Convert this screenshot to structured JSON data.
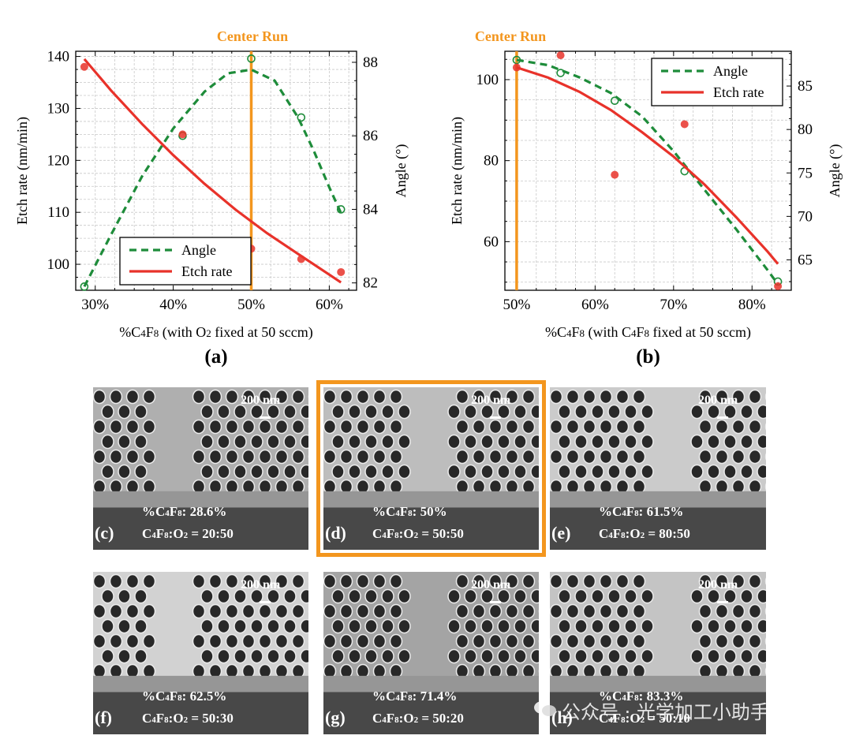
{
  "colors": {
    "angle": "#1e8c3a",
    "etch": "#e8322a",
    "center": "#f3961e",
    "grid": "#c8c8c8",
    "axis": "#000000"
  },
  "chart_data": [
    {
      "type": "line",
      "panel_label": "(a)",
      "annotation": "Center Run",
      "xlabel": "%C4F8 (with O2 fixed at 50 sccm)",
      "ylabel": "Etch rate (nm/min)",
      "y2label": "Angle (°)",
      "xlim": [
        27.5,
        63.5
      ],
      "ylim": [
        95,
        141
      ],
      "y2lim": [
        81.8,
        88.3
      ],
      "xticks": [
        30,
        40,
        50,
        60
      ],
      "xtick_labels": [
        "30%",
        "40%",
        "50%",
        "60%"
      ],
      "yticks": [
        100,
        110,
        120,
        130,
        140
      ],
      "ytick_labels": [
        "100",
        "110",
        "120",
        "130",
        "140"
      ],
      "y2ticks": [
        82,
        84,
        86,
        88
      ],
      "y2tick_labels": [
        "82",
        "84",
        "86",
        "88"
      ],
      "grid": true,
      "legend_position": "bottom-left",
      "center_x": 50,
      "series": [
        {
          "name": "Angle",
          "axis": "right",
          "style": "dashed",
          "points_x": [
            28.6,
            41.2,
            50,
            56.4,
            61.5
          ],
          "points_y": [
            81.9,
            86.0,
            88.1,
            86.5,
            84.0
          ],
          "fit_x": [
            28.6,
            32,
            36,
            40,
            44,
            47,
            50,
            53,
            56,
            58,
            60,
            61.5
          ],
          "fit_y": [
            81.9,
            83.3,
            84.9,
            86.2,
            87.2,
            87.7,
            87.8,
            87.5,
            86.5,
            85.6,
            84.6,
            83.9
          ]
        },
        {
          "name": "Etch rate",
          "axis": "left",
          "style": "solid",
          "points_x": [
            28.6,
            41.2,
            50,
            56.4,
            61.5
          ],
          "points_y": [
            138,
            125,
            103,
            101,
            98.5
          ],
          "fit_x": [
            28.6,
            32,
            36,
            40,
            44,
            48,
            52,
            56,
            60,
            61.5
          ],
          "fit_y": [
            139.5,
            133.5,
            127,
            121,
            115.5,
            110.5,
            106,
            102,
            98,
            96.5
          ]
        }
      ]
    },
    {
      "type": "line",
      "panel_label": "(b)",
      "annotation": "Center Run",
      "xlabel": "%C4F8 (with C4F8 fixed at 50 sccm)",
      "ylabel": "Etch rate (nm/min)",
      "y2label": "Angle (°)",
      "xlim": [
        48.5,
        85
      ],
      "ylim": [
        48,
        107
      ],
      "y2lim": [
        61.5,
        89
      ],
      "xticks": [
        50,
        60,
        70,
        80
      ],
      "xtick_labels": [
        "50%",
        "60%",
        "70%",
        "80%"
      ],
      "yticks": [
        60,
        80,
        100
      ],
      "ytick_labels": [
        "60",
        "80",
        "100"
      ],
      "y2ticks": [
        65,
        70,
        75,
        80,
        85
      ],
      "y2tick_labels": [
        "65",
        "70",
        "75",
        "80",
        "85"
      ],
      "grid": true,
      "legend_position": "top-right",
      "center_x": 50,
      "series": [
        {
          "name": "Angle",
          "axis": "right",
          "style": "dashed",
          "points_x": [
            50,
            55.6,
            62.5,
            71.4,
            83.3
          ],
          "points_y": [
            88,
            86.5,
            83.3,
            75.2,
            62.5
          ],
          "fit_x": [
            50,
            54,
            58,
            62,
            66,
            70,
            74,
            78,
            82,
            83.3
          ],
          "fit_y": [
            88,
            87.4,
            86,
            84.2,
            81.5,
            77.5,
            73,
            68.5,
            63.8,
            62.2
          ]
        },
        {
          "name": "Etch rate",
          "axis": "left",
          "style": "solid",
          "points_x": [
            50,
            55.6,
            62.5,
            71.4,
            83.3
          ],
          "points_y": [
            103,
            106,
            76.5,
            89,
            49
          ],
          "fit_x": [
            50,
            54,
            58,
            62,
            66,
            70,
            74,
            78,
            82,
            83.3
          ],
          "fit_y": [
            103,
            100.5,
            97,
            92.5,
            87,
            81,
            74,
            66,
            57.5,
            54.5
          ]
        }
      ]
    }
  ],
  "sem_panels": [
    {
      "letter": "(c)",
      "line1": "%C4F8: 28.6%",
      "line2": "C4F8:O2 = 20:50",
      "scale": "200 nm",
      "highlighted": false
    },
    {
      "letter": "(d)",
      "line1": "%C4F8: 50%",
      "line2": "C4F8:O2 = 50:50",
      "scale": "200 nm",
      "highlighted": true
    },
    {
      "letter": "(e)",
      "line1": "%C4F8: 61.5%",
      "line2": "C4F8:O2 = 80:50",
      "scale": "200 nm",
      "highlighted": false
    },
    {
      "letter": "(f)",
      "line1": "%C4F8: 62.5%",
      "line2": "C4F8:O2 = 50:30",
      "scale": "200 nm",
      "highlighted": false
    },
    {
      "letter": "(g)",
      "line1": "%C4F8: 71.4%",
      "line2": "C4F8:O2 = 50:20",
      "scale": "200 nm",
      "highlighted": false
    },
    {
      "letter": "(h)",
      "line1": "%C4F8: 83.3%",
      "line2": "C4F8:O2 = 50:10",
      "scale": "200 nm",
      "highlighted": false
    }
  ],
  "watermark": "公众号 · 光学加工小助手"
}
